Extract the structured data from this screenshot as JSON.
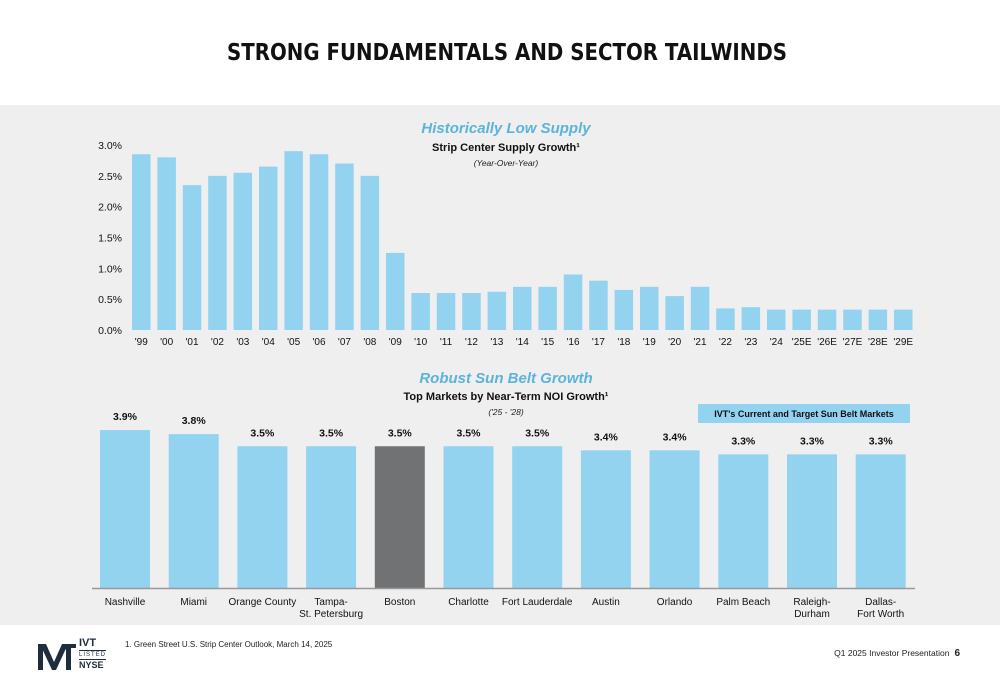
{
  "page": {
    "title": "STRONG FUNDAMENTALS AND SECTOR TAILWINDS",
    "footnote": "1.   Green Street U.S. Strip Center Outlook, March 14, 2025",
    "footer_label": "Q1 2025 Investor Presentation",
    "page_number": "6",
    "logo": {
      "name": "IVT",
      "sub1": "LISTED",
      "sub2": "NYSE"
    },
    "colors": {
      "bar": "#93d3ef",
      "highlight": "#717273",
      "accent_title": "#5ab4dc",
      "background": "#efefef"
    }
  },
  "chart_data": [
    {
      "type": "bar",
      "title": "Historically Low Supply",
      "subtitle": "Strip Center Supply Growth¹",
      "note": "(Year-Over-Year)",
      "categories": [
        "'99",
        "'00",
        "'01",
        "'02",
        "'03",
        "'04",
        "'05",
        "'06",
        "'07",
        "'08",
        "'09",
        "'10",
        "'11",
        "'12",
        "'13",
        "'14",
        "'15",
        "'16",
        "'17",
        "'18",
        "'19",
        "'20",
        "'21",
        "'22",
        "'23",
        "'24",
        "'25E",
        "'26E",
        "'27E",
        "'28E",
        "'29E"
      ],
      "values": [
        2.85,
        2.8,
        2.35,
        2.5,
        2.55,
        2.65,
        2.9,
        2.85,
        2.7,
        2.5,
        1.25,
        0.6,
        0.6,
        0.6,
        0.62,
        0.7,
        0.7,
        0.9,
        0.8,
        0.65,
        0.7,
        0.55,
        0.7,
        0.35,
        0.37,
        0.33,
        0.33,
        0.33,
        0.33,
        0.33,
        0.33
      ],
      "yticks": [
        "3.0%",
        "2.5%",
        "2.0%",
        "1.5%",
        "1.0%",
        "0.5%",
        "0.0%"
      ],
      "ylim": [
        0,
        3.0
      ],
      "grid": false
    },
    {
      "type": "bar",
      "title": "Robust Sun Belt Growth",
      "subtitle": "Top Markets by Near-Term NOI Growth¹",
      "note": "('25 - '28)",
      "legend": "IVT's Current and Target Sun Belt Markets",
      "categories": [
        "Nashville",
        "Miami",
        "Orange County",
        "Tampa-\nSt. Petersburg",
        "Boston",
        "Charlotte",
        "Fort Lauderdale",
        "Austin",
        "Orlando",
        "Palm Beach",
        "Raleigh-\nDurham",
        "Dallas-\nFort Worth"
      ],
      "values": [
        3.9,
        3.8,
        3.5,
        3.5,
        3.5,
        3.5,
        3.5,
        3.4,
        3.4,
        3.3,
        3.3,
        3.3
      ],
      "labels": [
        "3.9%",
        "3.8%",
        "3.5%",
        "3.5%",
        "3.5%",
        "3.5%",
        "3.5%",
        "3.4%",
        "3.4%",
        "3.3%",
        "3.3%",
        "3.3%"
      ],
      "highlighted": [
        "Boston"
      ],
      "grid": false
    }
  ]
}
